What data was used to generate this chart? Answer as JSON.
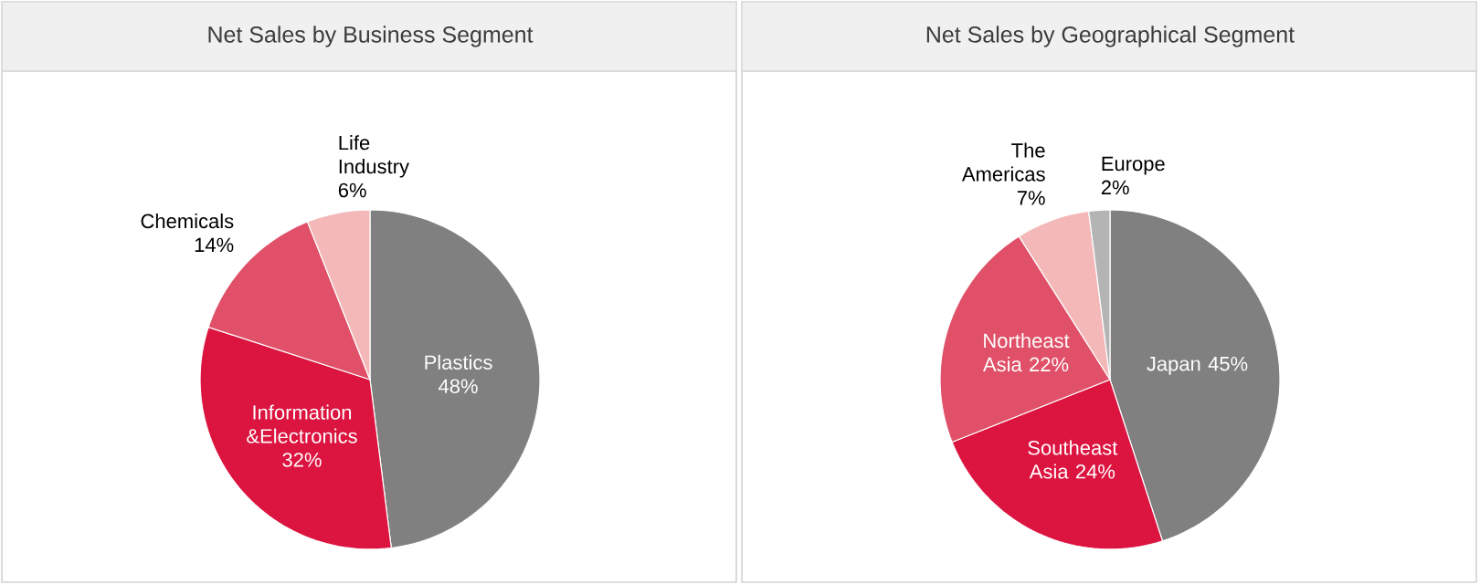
{
  "chart_data": [
    {
      "type": "pie",
      "title": "Net Sales by Business Segment",
      "categories": [
        "Plastics",
        "Information &Electronics",
        "Chemicals",
        "Life Industry"
      ],
      "values": [
        48,
        32,
        14,
        6
      ],
      "value_labels": [
        "48%",
        "32%",
        "14%",
        "6%"
      ],
      "colors": [
        "#808080",
        "#dc1440",
        "#e05068",
        "#f4b8b8"
      ]
    },
    {
      "type": "pie",
      "title": "Net Sales by Geographical Segment",
      "categories": [
        "Japan",
        "Southeast Asia",
        "Northeast Asia",
        "The Americas",
        "Europe"
      ],
      "values": [
        45,
        24,
        22,
        7,
        2
      ],
      "value_labels": [
        "45%",
        "24%",
        "22%",
        "7%",
        "2%"
      ],
      "colors": [
        "#808080",
        "#dc1440",
        "#e05068",
        "#f4b8b8",
        "#b4b4b4"
      ]
    }
  ]
}
